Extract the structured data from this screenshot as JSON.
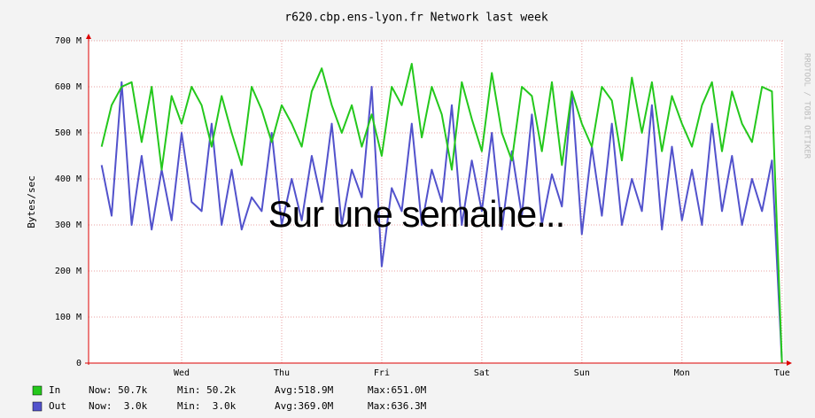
{
  "chart_data": {
    "type": "line",
    "title": "r620.cbp.ens-lyon.fr Network last week",
    "y_label": "Bytes/sec",
    "watermark": "RRDTOOL / TOBI OETIKER",
    "annotation": "Sur une semaine...",
    "xlim": [
      -0.93,
      6.02
    ],
    "xticks": [
      {
        "value": 0,
        "label": "Wed"
      },
      {
        "value": 1,
        "label": "Thu"
      },
      {
        "value": 2,
        "label": "Fri"
      },
      {
        "value": 3,
        "label": "Sat"
      },
      {
        "value": 4,
        "label": "Sun"
      },
      {
        "value": 5,
        "label": "Mon"
      },
      {
        "value": 6,
        "label": "Tue"
      }
    ],
    "ylim": [
      0,
      700
    ],
    "yticks": [
      0,
      {
        "value": 100,
        "label": "100 M"
      },
      {
        "value": 200,
        "label": "200 M"
      },
      {
        "value": 300,
        "label": "300 M"
      },
      {
        "value": 400,
        "label": "400 M"
      },
      {
        "value": 500,
        "label": "500 M"
      },
      {
        "value": 600,
        "label": "600 M"
      },
      {
        "value": 700,
        "label": "700 M"
      }
    ],
    "grid": true,
    "x": [
      -0.8,
      -0.7,
      -0.6,
      -0.5,
      -0.4,
      -0.3,
      -0.2,
      -0.1,
      0,
      0.1,
      0.2,
      0.3,
      0.4,
      0.5,
      0.6,
      0.7,
      0.8,
      0.9,
      1,
      1.1,
      1.2,
      1.3,
      1.4,
      1.5,
      1.6,
      1.7,
      1.8,
      1.9,
      2,
      2.1,
      2.2,
      2.3,
      2.4,
      2.5,
      2.6,
      2.7,
      2.8,
      2.9,
      3,
      3.1,
      3.2,
      3.3,
      3.4,
      3.5,
      3.6,
      3.7,
      3.8,
      3.9,
      4,
      4.1,
      4.2,
      4.3,
      4.4,
      4.5,
      4.6,
      4.7,
      4.8,
      4.9,
      5,
      5.1,
      5.2,
      5.3,
      5.4,
      5.5,
      5.6,
      5.7,
      5.8,
      5.9,
      6.0
    ],
    "series": [
      {
        "name": "In",
        "color": "#24c81c",
        "stats": [
          "Now: 50.7k",
          "Min: 50.2k",
          "Avg:518.9M",
          "Max:651.0M"
        ],
        "values": [
          470,
          560,
          600,
          610,
          480,
          600,
          420,
          580,
          520,
          600,
          560,
          470,
          580,
          500,
          430,
          600,
          550,
          480,
          560,
          520,
          470,
          590,
          640,
          560,
          500,
          560,
          470,
          540,
          450,
          600,
          560,
          650,
          490,
          600,
          540,
          420,
          610,
          530,
          460,
          630,
          500,
          440,
          600,
          580,
          460,
          610,
          430,
          590,
          520,
          470,
          600,
          570,
          440,
          620,
          500,
          610,
          460,
          580,
          520,
          470,
          560,
          610,
          460,
          590,
          520,
          480,
          600,
          590,
          0.0507
        ]
      },
      {
        "name": "Out",
        "color": "#5252cc",
        "stats": [
          "Now:  3.0k",
          "Min:  3.0k",
          "Avg:369.0M",
          "Max:636.3M"
        ],
        "values": [
          430,
          320,
          610,
          300,
          450,
          290,
          420,
          310,
          500,
          350,
          330,
          520,
          300,
          420,
          290,
          360,
          330,
          500,
          300,
          400,
          310,
          450,
          350,
          520,
          300,
          420,
          360,
          600,
          210,
          380,
          330,
          520,
          300,
          420,
          350,
          560,
          300,
          440,
          330,
          500,
          290,
          460,
          320,
          540,
          300,
          410,
          340,
          590,
          280,
          470,
          320,
          520,
          300,
          400,
          330,
          560,
          290,
          470,
          310,
          420,
          300,
          520,
          330,
          450,
          300,
          400,
          330,
          440,
          0.003
        ]
      }
    ]
  }
}
